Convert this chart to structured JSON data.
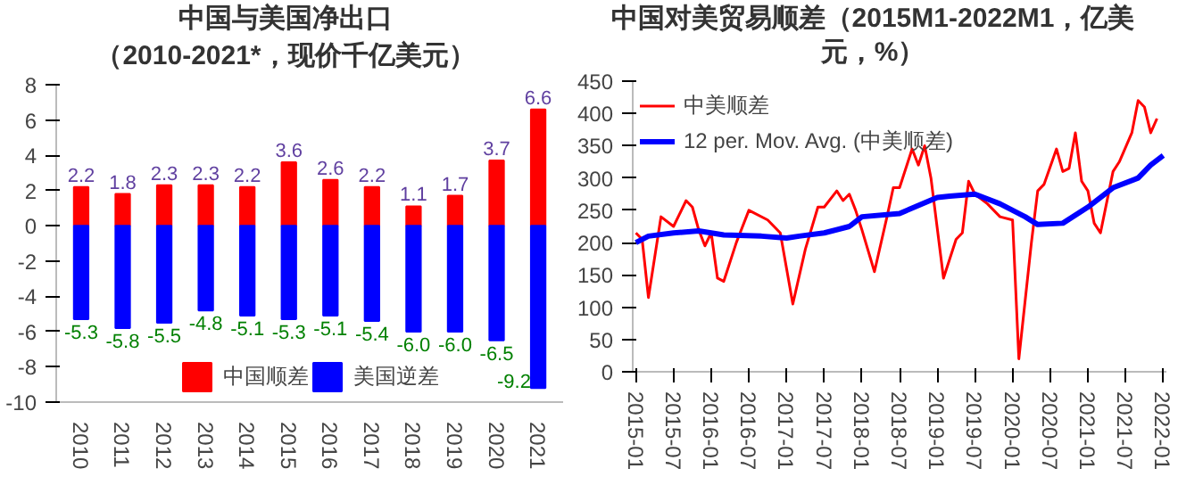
{
  "chart_data": [
    {
      "type": "bar",
      "title": "中国与美国净出口",
      "subtitle": "（2010-2021*，现价千亿美元）",
      "categories": [
        "2010",
        "2011",
        "2012",
        "2013",
        "2014",
        "2015",
        "2016",
        "2017",
        "2018",
        "2019",
        "2020",
        "2021"
      ],
      "series": [
        {
          "name": "中国顺差",
          "color": "#ff0000",
          "values": [
            2.2,
            1.8,
            2.3,
            2.3,
            2.2,
            3.6,
            2.6,
            2.2,
            1.1,
            1.7,
            3.7,
            6.6
          ],
          "value_labels": [
            "2.2",
            "1.8",
            "2.3",
            "2.3",
            "2.2",
            "3.6",
            "2.6",
            "2.2",
            "1.1",
            "1.7",
            "3.7",
            "6.6"
          ]
        },
        {
          "name": "美国逆差",
          "color": "#0000ff",
          "values": [
            -5.3,
            -5.8,
            -5.5,
            -4.8,
            -5.1,
            -5.3,
            -5.1,
            -5.4,
            -6.0,
            -6.0,
            -6.5,
            -9.2
          ],
          "value_labels": [
            "-5.3",
            "-5.8",
            "-5.5",
            "-4.8",
            "-5.1",
            "-5.3",
            "-5.1",
            "-5.4",
            "-6.0",
            "-6.0",
            "-6.5",
            "-9.2"
          ]
        }
      ],
      "stacked": true,
      "ylim": [
        -10,
        8
      ],
      "yticks": [
        -10,
        -8,
        -6,
        -4,
        -2,
        0,
        2,
        4,
        6,
        8
      ],
      "grid": false,
      "legend": "bottom"
    },
    {
      "type": "line",
      "title": "中国对美贸易顺差（2015M1-2022M1，亿美元，%）",
      "series": [
        {
          "name": "中美顺差",
          "color": "#ff0000",
          "x": [
            "2015-01",
            "2015-02",
            "2015-03",
            "2015-05",
            "2015-07",
            "2015-09",
            "2015-10",
            "2015-11",
            "2015-12",
            "2016-01",
            "2016-02",
            "2016-03",
            "2016-05",
            "2016-07",
            "2016-10",
            "2016-12",
            "2017-02",
            "2017-04",
            "2017-06",
            "2017-07",
            "2017-09",
            "2017-10",
            "2017-11",
            "2017-12",
            "2018-01",
            "2018-03",
            "2018-05",
            "2018-06",
            "2018-07",
            "2018-09",
            "2018-10",
            "2018-11",
            "2018-12",
            "2019-02",
            "2019-04",
            "2019-05",
            "2019-06",
            "2019-07",
            "2019-09",
            "2019-11",
            "2020-01",
            "2020-02",
            "2020-04",
            "2020-05",
            "2020-06",
            "2020-08",
            "2020-09",
            "2020-10",
            "2020-11",
            "2020-12",
            "2021-01",
            "2021-02",
            "2021-03",
            "2021-05",
            "2021-06",
            "2021-08",
            "2021-09",
            "2021-10",
            "2021-11",
            "2021-12"
          ],
          "values": [
            215,
            205,
            115,
            240,
            225,
            265,
            255,
            220,
            195,
            215,
            145,
            140,
            200,
            250,
            235,
            215,
            105,
            190,
            255,
            255,
            280,
            265,
            275,
            250,
            220,
            155,
            240,
            285,
            285,
            345,
            320,
            350,
            300,
            145,
            205,
            215,
            295,
            275,
            260,
            240,
            235,
            20,
            200,
            280,
            290,
            345,
            310,
            315,
            370,
            295,
            280,
            230,
            215,
            310,
            325,
            370,
            420,
            410,
            370,
            392
          ]
        },
        {
          "name": "12 per. Mov. Avg. (中美顺差)",
          "color": "#0000ff",
          "x": [
            "2015-01",
            "2015-03",
            "2015-07",
            "2015-11",
            "2016-03",
            "2016-09",
            "2017-01",
            "2017-03",
            "2017-07",
            "2017-11",
            "2018-01",
            "2018-07",
            "2019-01",
            "2019-03",
            "2019-07",
            "2019-11",
            "2020-03",
            "2020-05",
            "2020-09",
            "2021-01",
            "2021-05",
            "2021-09",
            "2021-11",
            "2022-01"
          ],
          "values": [
            200,
            210,
            215,
            218,
            212,
            210,
            207,
            210,
            215,
            225,
            240,
            245,
            270,
            272,
            275,
            260,
            240,
            228,
            230,
            255,
            285,
            300,
            320,
            335
          ]
        }
      ],
      "xlim": [
        "2015-01",
        "2022-01"
      ],
      "xticks": [
        "2015-01",
        "2015-07",
        "2016-01",
        "2016-07",
        "2017-01",
        "2017-07",
        "2018-01",
        "2018-07",
        "2019-01",
        "2019-07",
        "2020-01",
        "2020-07",
        "2021-01",
        "2021-07",
        "2022-01"
      ],
      "ylim": [
        0,
        450
      ],
      "yticks": [
        0,
        50,
        100,
        150,
        200,
        250,
        300,
        350,
        400,
        450
      ],
      "grid": false,
      "legend": "top left"
    }
  ]
}
